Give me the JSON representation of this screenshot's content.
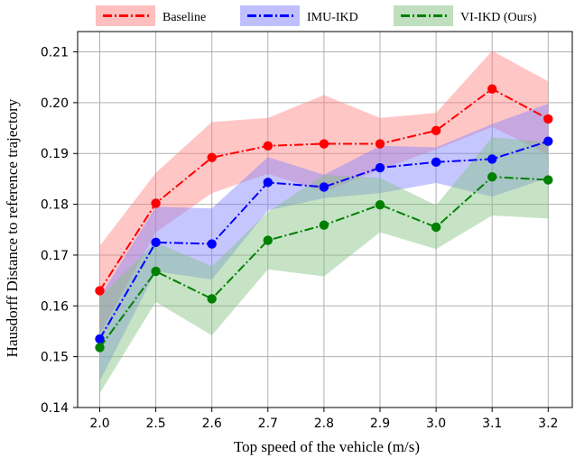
{
  "chart_data": {
    "type": "line",
    "title": "",
    "xlabel": "Top speed of the vehicle (m/s)",
    "ylabel": "Hausdorff Distance to reference trajectory",
    "categories": [
      "2.0",
      "2.5",
      "2.6",
      "2.7",
      "2.8",
      "2.9",
      "3.0",
      "3.1",
      "3.2"
    ],
    "ylim": [
      0.14,
      0.214
    ],
    "yticks": [
      0.14,
      0.15,
      0.16,
      0.17,
      0.18,
      0.19,
      0.2,
      0.21
    ],
    "ytick_labels": [
      "0.14",
      "0.15",
      "0.16",
      "0.17",
      "0.18",
      "0.19",
      "0.20",
      "0.21"
    ],
    "grid": true,
    "legend_position": "top-center",
    "series": [
      {
        "name": "Baseline",
        "color": "#ff0000",
        "fill": "#ff8080",
        "values": [
          0.163,
          0.1802,
          0.1892,
          0.1915,
          0.1919,
          0.1919,
          0.1945,
          0.2027,
          0.1968
        ],
        "upper": [
          0.1718,
          0.1862,
          0.1962,
          0.197,
          0.2015,
          0.197,
          0.198,
          0.2102,
          0.2042
        ],
        "lower": [
          0.1545,
          0.1745,
          0.1822,
          0.186,
          0.1825,
          0.1868,
          0.1908,
          0.1952,
          0.1898
        ]
      },
      {
        "name": "IMU-IKD",
        "color": "#0000ff",
        "fill": "#8080ff",
        "values": [
          0.1535,
          0.1725,
          0.1722,
          0.1843,
          0.1834,
          0.1872,
          0.1883,
          0.1889,
          0.1924
        ],
        "upper": [
          0.1618,
          0.1795,
          0.1792,
          0.1893,
          0.1858,
          0.1915,
          0.1912,
          0.1958,
          0.1998
        ],
        "lower": [
          0.1452,
          0.1668,
          0.1652,
          0.1788,
          0.1812,
          0.1822,
          0.1842,
          0.1815,
          0.1852
        ]
      },
      {
        "name": "VI-IKD (Ours)",
        "color": "#008000",
        "fill": "#80c080",
        "values": [
          0.1518,
          0.1668,
          0.1614,
          0.1729,
          0.1759,
          0.1799,
          0.1755,
          0.1854,
          0.1848
        ],
        "upper": [
          0.1618,
          0.1725,
          0.1678,
          0.1785,
          0.1858,
          0.1852,
          0.1798,
          0.1932,
          0.1922
        ],
        "lower": [
          0.1428,
          0.1608,
          0.1542,
          0.1672,
          0.1658,
          0.1745,
          0.1712,
          0.1778,
          0.1772
        ]
      }
    ]
  }
}
